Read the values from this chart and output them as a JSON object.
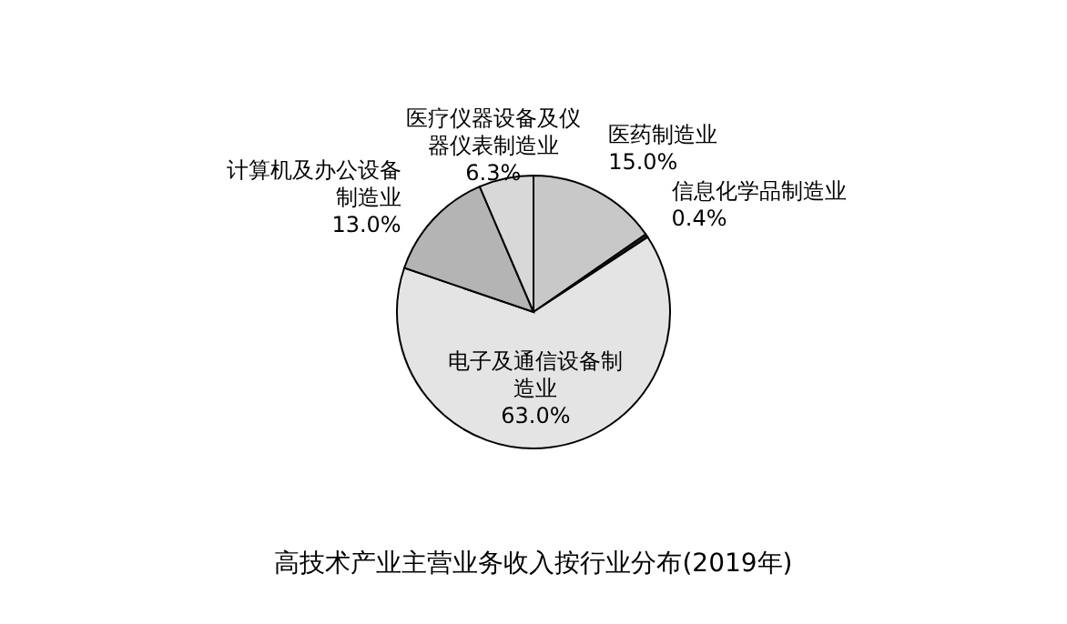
{
  "chart_data": {
    "type": "pie",
    "title": "高技术产业主营业务收入按行业分布(2019年)",
    "categories": [
      "医药制造业",
      "信息化学品制造业",
      "电子及通信设备制造业",
      "计算机及办公设备制造业",
      "医疗仪器设备及仪器仪表制造业"
    ],
    "values": [
      15.0,
      0.4,
      63.0,
      13.0,
      6.3
    ],
    "value_labels": [
      "15.0%",
      "0.4%",
      "63.0%",
      "13.0%",
      "6.3%"
    ],
    "colors": [
      "#c8c8c8",
      "#202020",
      "#e4e4e4",
      "#b4b4b4",
      "#d8d8d8"
    ]
  }
}
